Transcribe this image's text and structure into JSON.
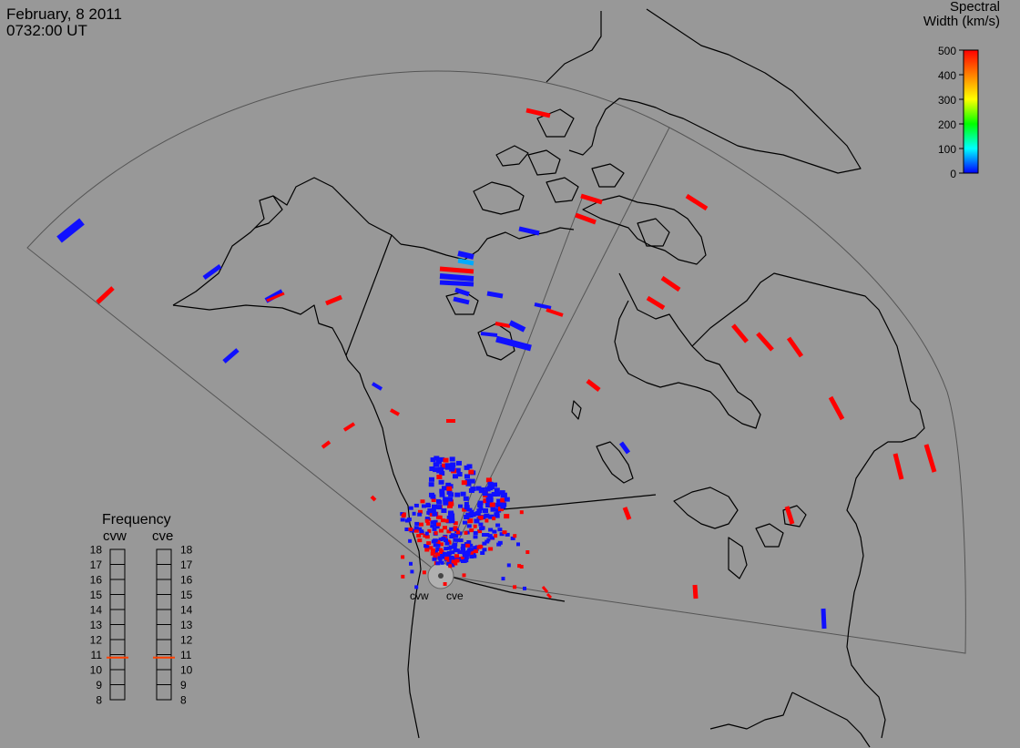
{
  "header": {
    "date": "February, 8 2011",
    "time": "0732:00 UT"
  },
  "legend": {
    "title_line1": "Spectral",
    "title_line2": "Width (km/s)",
    "ticks": [
      "500",
      "400",
      "300",
      "200",
      "100",
      "0"
    ],
    "range": [
      0,
      500
    ],
    "colors": [
      "#0000ff",
      "#00ffff",
      "#00ff00",
      "#ffff00",
      "#ff8000",
      "#ff0000"
    ]
  },
  "frequency_panel": {
    "title": "Frequency",
    "radars": [
      "cvw",
      "cve"
    ],
    "ticks": [
      "18",
      "17",
      "16",
      "15",
      "14",
      "13",
      "12",
      "11",
      "10",
      "9",
      "8"
    ],
    "range": [
      8,
      18
    ],
    "values": [
      10.8,
      10.8
    ],
    "marker_color": "#ff4000"
  },
  "radars": {
    "labels": [
      "cvw",
      "cve"
    ]
  },
  "colors": {
    "background": "#989898",
    "coastline": "#000000",
    "fov_outline": "#555555",
    "scatter_low": "#1010ff",
    "scatter_high": "#ff0000"
  }
}
